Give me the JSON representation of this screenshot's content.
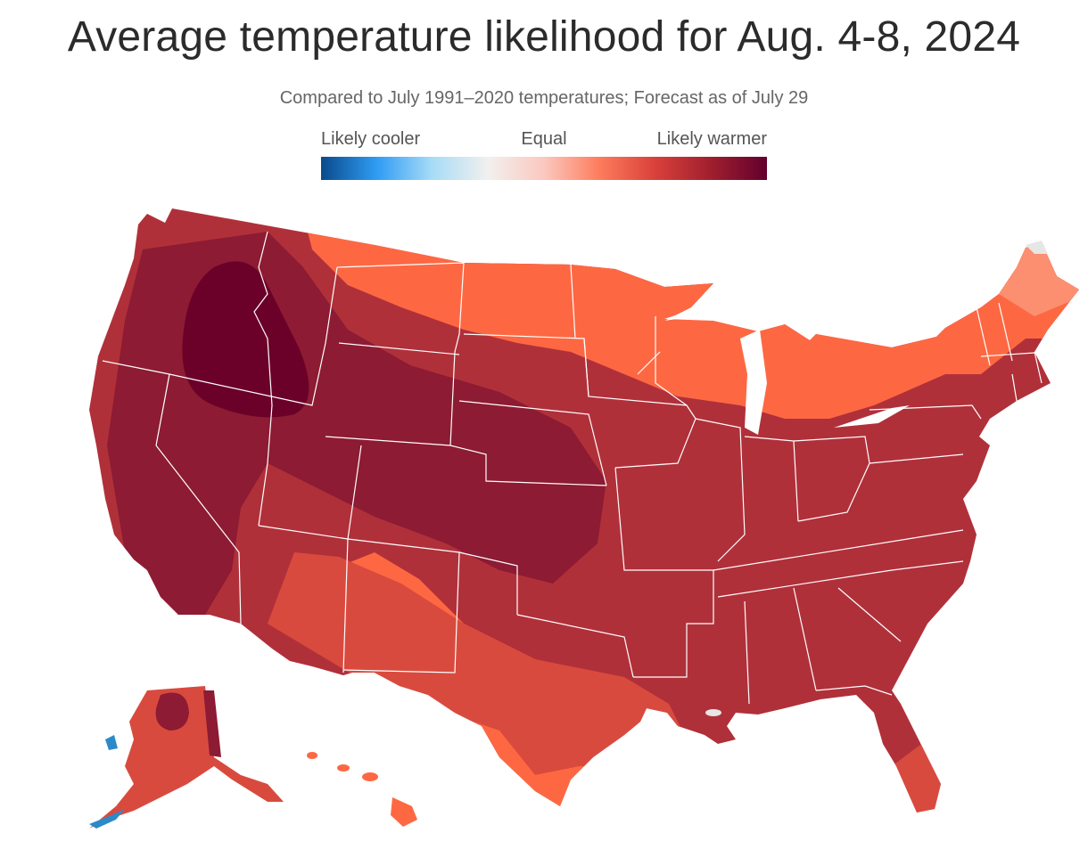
{
  "title": "Average temperature likelihood for Aug. 4-8, 2024",
  "subtitle": "Compared to July 1991–2020 temperatures; Forecast as of July 29",
  "legend": {
    "labels": {
      "cooler": "Likely cooler",
      "equal": "Equal",
      "warmer": "Likely warmer"
    },
    "scale": [
      "#0a4a8c",
      "#2f9cf3",
      "#a8dcf7",
      "#f2f0ee",
      "#fbc8bf",
      "#fd7c5c",
      "#d9403a",
      "#9f1f2e",
      "#63002d"
    ]
  },
  "colors": {
    "land": "#b0303a",
    "darkest": "#6b0029",
    "dark": "#8c1b33",
    "mid": "#b0303a",
    "light": "#d94a3e",
    "lighter": "#fd6843",
    "pale": "#fb8f70",
    "cool": "#2c8ac9",
    "border": "#ffffff",
    "water": "#e6e6e6"
  }
}
